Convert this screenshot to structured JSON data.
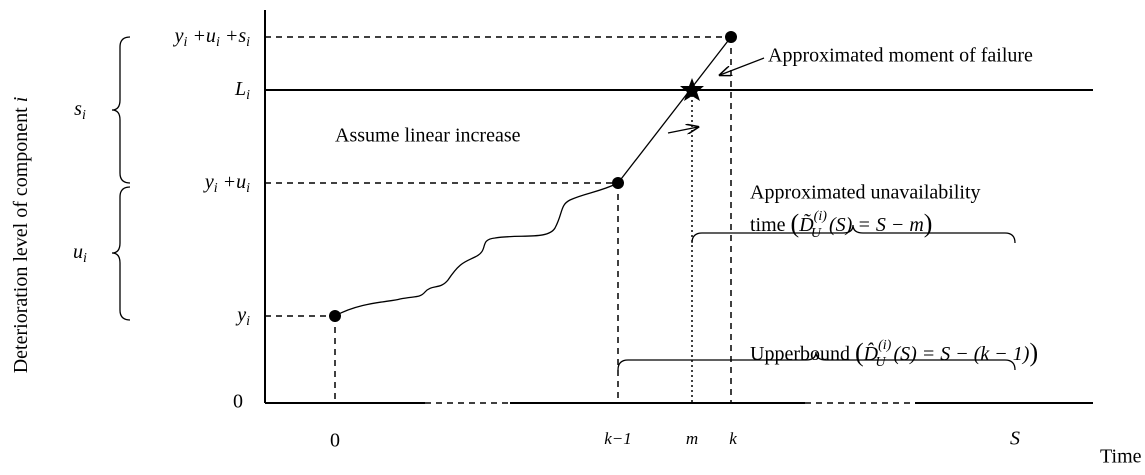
{
  "y_axis_label": {
    "text": "Deterioration level of component ",
    "var": "i"
  },
  "levels": {
    "top": [
      "y",
      "i",
      " +u",
      "i",
      " +s",
      "i"
    ],
    "threshold": [
      "L",
      "i"
    ],
    "middle": [
      "y",
      "i",
      " +u",
      "i"
    ],
    "start": [
      "y",
      "i"
    ],
    "zero": "0"
  },
  "braces": {
    "s": [
      "s",
      "i"
    ],
    "u": [
      "u",
      "i"
    ]
  },
  "times": {
    "start": "0",
    "k_minus_1": "k−1",
    "m": "m",
    "k": "k",
    "S": "S",
    "axis": "Time"
  },
  "annotations": {
    "failure": "Approximated moment of failure",
    "linear": "Assume linear increase",
    "unavailability": {
      "line1": "Approximated unavailability",
      "line2": [
        "time ",
        "(",
        "D̃",
        "(i)",
        "U",
        "(S) = S − m",
        ")"
      ]
    },
    "upperbound": [
      "Upperbound ",
      "(",
      "D̂",
      "(i)",
      "U",
      "(S) = S − (k − 1)",
      ")"
    ]
  }
}
